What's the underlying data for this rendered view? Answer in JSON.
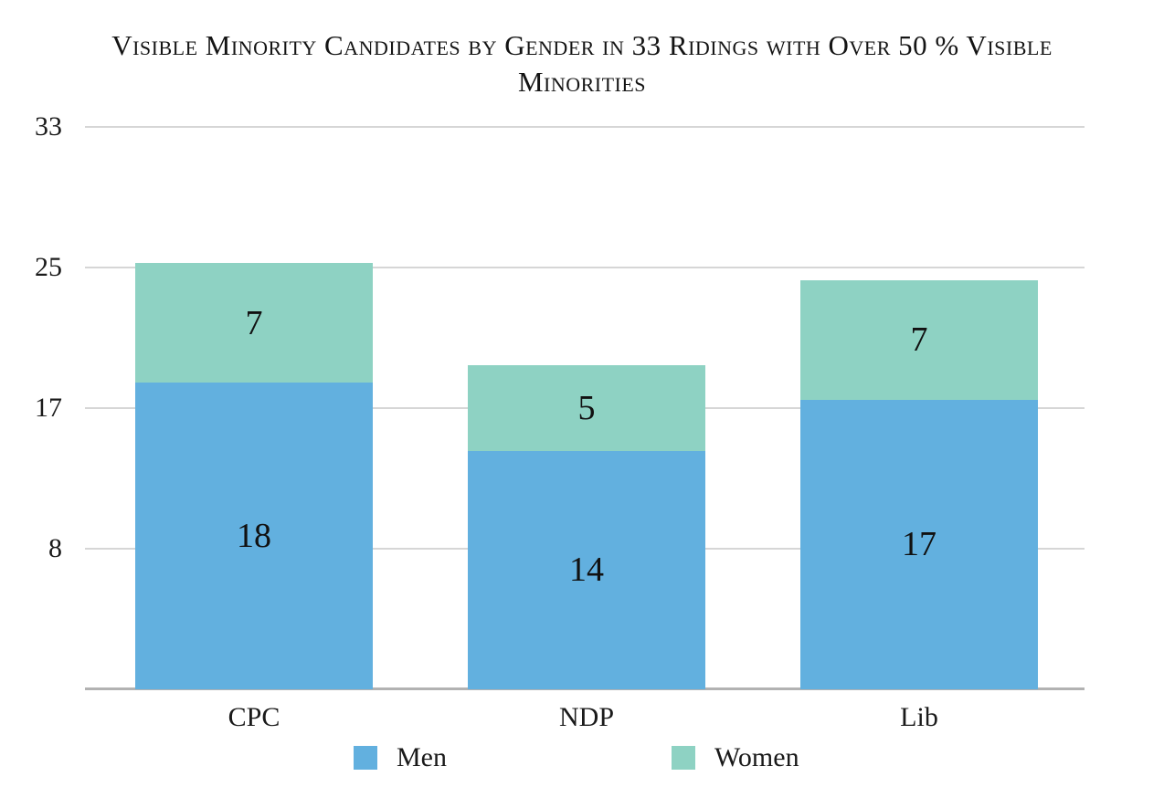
{
  "title": {
    "full": "Visible Minority Candidates by Gender in 33 Ridings with Over 50 % Visible Minorities",
    "line1": "Visible Minority Candidates by Gender in 33 Ridings with Over 50 % Visible",
    "line2": "Minorities"
  },
  "chart_data": {
    "type": "bar",
    "stacked": true,
    "title": "Visible Minority Candidates by Gender in 33 Ridings with Over 50 % Visible Minorities",
    "categories": [
      "CPC",
      "NDP",
      "Lib"
    ],
    "series": [
      {
        "name": "Men",
        "color": "#62B0DF",
        "values": [
          18,
          14,
          17
        ]
      },
      {
        "name": "Women",
        "color": "#8ED2C3",
        "values": [
          7,
          5,
          7
        ]
      }
    ],
    "totals": [
      25,
      19,
      24
    ],
    "yaxis": {
      "min": 0,
      "max": 33,
      "tick_labels": [
        "33",
        "25",
        "17",
        "8"
      ],
      "tick_values": [
        33,
        24.75,
        16.5,
        8.25
      ]
    },
    "xlabel": "",
    "ylabel": "",
    "grid": true,
    "legend_position": "bottom"
  },
  "legend": {
    "items": [
      {
        "label": "Men",
        "color": "#62B0DF"
      },
      {
        "label": "Women",
        "color": "#8ED2C3"
      }
    ]
  },
  "colors": {
    "men": "#62B0DF",
    "women": "#8ED2C3",
    "gridline": "#D6D6D6",
    "axis_line": "#B2B2B2",
    "text": "#111111"
  }
}
